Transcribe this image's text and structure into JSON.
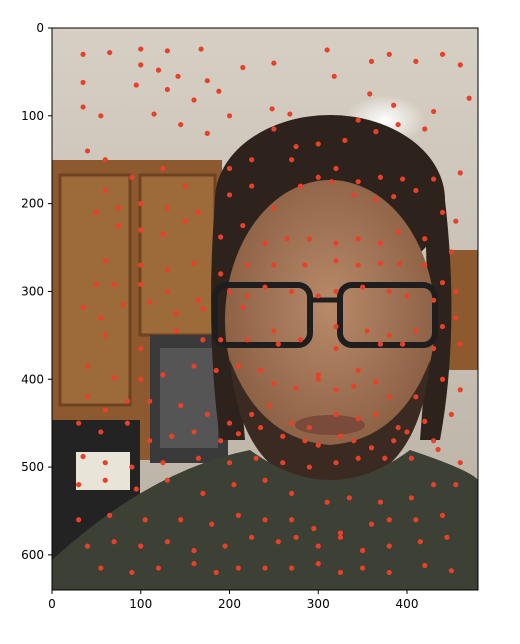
{
  "chart_data": {
    "type": "scatter",
    "title": "",
    "xlabel": "",
    "ylabel": "",
    "xlim": [
      0,
      480
    ],
    "ylim": [
      640,
      0
    ],
    "x_ticks": [
      0,
      100,
      200,
      300,
      400
    ],
    "y_ticks": [
      0,
      100,
      200,
      300,
      400,
      500,
      600
    ],
    "y_inverted": true,
    "marker_color": "#e8412a",
    "series": [
      {
        "values": [
          [
            35,
            30
          ],
          [
            65,
            28
          ],
          [
            100,
            24
          ],
          [
            130,
            26
          ],
          [
            168,
            24
          ],
          [
            100,
            42
          ],
          [
            120,
            48
          ],
          [
            142,
            55
          ],
          [
            175,
            60
          ],
          [
            215,
            45
          ],
          [
            250,
            40
          ],
          [
            310,
            25
          ],
          [
            318,
            55
          ],
          [
            360,
            38
          ],
          [
            380,
            30
          ],
          [
            410,
            38
          ],
          [
            440,
            30
          ],
          [
            460,
            42
          ],
          [
            470,
            80
          ],
          [
            35,
            62
          ],
          [
            35,
            90
          ],
          [
            55,
            100
          ],
          [
            95,
            65
          ],
          [
            130,
            70
          ],
          [
            160,
            82
          ],
          [
            188,
            72
          ],
          [
            200,
            100
          ],
          [
            115,
            98
          ],
          [
            145,
            110
          ],
          [
            175,
            120
          ],
          [
            248,
            92
          ],
          [
            268,
            98
          ],
          [
            345,
            105
          ],
          [
            358,
            75
          ],
          [
            385,
            88
          ],
          [
            420,
            115
          ],
          [
            430,
            95
          ],
          [
            250,
            115
          ],
          [
            275,
            135
          ],
          [
            300,
            132
          ],
          [
            330,
            128
          ],
          [
            365,
            118
          ],
          [
            390,
            110
          ],
          [
            40,
            140
          ],
          [
            60,
            150
          ],
          [
            90,
            170
          ],
          [
            125,
            160
          ],
          [
            150,
            180
          ],
          [
            200,
            160
          ],
          [
            225,
            150
          ],
          [
            270,
            150
          ],
          [
            300,
            170
          ],
          [
            320,
            160
          ],
          [
            345,
            175
          ],
          [
            370,
            170
          ],
          [
            395,
            172
          ],
          [
            430,
            172
          ],
          [
            460,
            165
          ],
          [
            60,
            185
          ],
          [
            75,
            205
          ],
          [
            100,
            200
          ],
          [
            130,
            205
          ],
          [
            165,
            210
          ],
          [
            200,
            190
          ],
          [
            225,
            180
          ],
          [
            250,
            205
          ],
          [
            280,
            180
          ],
          [
            315,
            175
          ],
          [
            340,
            190
          ],
          [
            365,
            195
          ],
          [
            385,
            192
          ],
          [
            410,
            185
          ],
          [
            440,
            210
          ],
          [
            455,
            220
          ],
          [
            50,
            210
          ],
          [
            75,
            225
          ],
          [
            100,
            230
          ],
          [
            125,
            235
          ],
          [
            150,
            220
          ],
          [
            190,
            238
          ],
          [
            215,
            225
          ],
          [
            240,
            245
          ],
          [
            265,
            240
          ],
          [
            290,
            240
          ],
          [
            320,
            245
          ],
          [
            345,
            240
          ],
          [
            370,
            245
          ],
          [
            390,
            232
          ],
          [
            420,
            240
          ],
          [
            450,
            255
          ],
          [
            60,
            265
          ],
          [
            100,
            270
          ],
          [
            130,
            275
          ],
          [
            160,
            268
          ],
          [
            190,
            280
          ],
          [
            220,
            270
          ],
          [
            250,
            270
          ],
          [
            285,
            270
          ],
          [
            320,
            265
          ],
          [
            345,
            270
          ],
          [
            370,
            268
          ],
          [
            392,
            268
          ],
          [
            420,
            270
          ],
          [
            440,
            290
          ],
          [
            455,
            300
          ],
          [
            50,
            292
          ],
          [
            70,
            292
          ],
          [
            100,
            292
          ],
          [
            130,
            300
          ],
          [
            165,
            310
          ],
          [
            200,
            300
          ],
          [
            220,
            305
          ],
          [
            240,
            295
          ],
          [
            270,
            300
          ],
          [
            300,
            305
          ],
          [
            320,
            300
          ],
          [
            350,
            295
          ],
          [
            380,
            300
          ],
          [
            400,
            305
          ],
          [
            430,
            310
          ],
          [
            455,
            330
          ],
          [
            35,
            318
          ],
          [
            55,
            330
          ],
          [
            80,
            315
          ],
          [
            110,
            312
          ],
          [
            140,
            325
          ],
          [
            170,
            320
          ],
          [
            215,
            318
          ],
          [
            250,
            345
          ],
          [
            280,
            355
          ],
          [
            320,
            340
          ],
          [
            355,
            345
          ],
          [
            380,
            350
          ],
          [
            410,
            345
          ],
          [
            440,
            340
          ],
          [
            60,
            350
          ],
          [
            100,
            365
          ],
          [
            140,
            345
          ],
          [
            170,
            355
          ],
          [
            190,
            355
          ],
          [
            220,
            355
          ],
          [
            255,
            360
          ],
          [
            300,
            395
          ],
          [
            320,
            365
          ],
          [
            345,
            390
          ],
          [
            370,
            360
          ],
          [
            395,
            360
          ],
          [
            430,
            365
          ],
          [
            460,
            360
          ],
          [
            40,
            385
          ],
          [
            70,
            398
          ],
          [
            100,
            400
          ],
          [
            125,
            395
          ],
          [
            160,
            385
          ],
          [
            185,
            390
          ],
          [
            210,
            385
          ],
          [
            235,
            390
          ],
          [
            250,
            405
          ],
          [
            275,
            410
          ],
          [
            300,
            400
          ],
          [
            320,
            412
          ],
          [
            340,
            408
          ],
          [
            365,
            403
          ],
          [
            380,
            420
          ],
          [
            410,
            420
          ],
          [
            440,
            400
          ],
          [
            460,
            412
          ],
          [
            40,
            420
          ],
          [
            60,
            435
          ],
          [
            85,
            425
          ],
          [
            110,
            425
          ],
          [
            145,
            430
          ],
          [
            175,
            440
          ],
          [
            200,
            450
          ],
          [
            225,
            440
          ],
          [
            245,
            430
          ],
          [
            270,
            450
          ],
          [
            290,
            455
          ],
          [
            320,
            440
          ],
          [
            345,
            445
          ],
          [
            365,
            440
          ],
          [
            390,
            455
          ],
          [
            420,
            448
          ],
          [
            450,
            440
          ],
          [
            30,
            450
          ],
          [
            55,
            460
          ],
          [
            85,
            450
          ],
          [
            110,
            470
          ],
          [
            135,
            465
          ],
          [
            160,
            460
          ],
          [
            190,
            470
          ],
          [
            210,
            462
          ],
          [
            235,
            455
          ],
          [
            260,
            465
          ],
          [
            285,
            470
          ],
          [
            300,
            475
          ],
          [
            325,
            465
          ],
          [
            340,
            470
          ],
          [
            360,
            478
          ],
          [
            385,
            470
          ],
          [
            400,
            460
          ],
          [
            430,
            470
          ],
          [
            460,
            495
          ],
          [
            35,
            488
          ],
          [
            60,
            495
          ],
          [
            90,
            500
          ],
          [
            125,
            495
          ],
          [
            165,
            490
          ],
          [
            200,
            495
          ],
          [
            230,
            490
          ],
          [
            260,
            495
          ],
          [
            290,
            500
          ],
          [
            320,
            495
          ],
          [
            345,
            490
          ],
          [
            375,
            490
          ],
          [
            405,
            490
          ],
          [
            435,
            480
          ],
          [
            30,
            520
          ],
          [
            60,
            515
          ],
          [
            95,
            525
          ],
          [
            130,
            515
          ],
          [
            170,
            530
          ],
          [
            205,
            520
          ],
          [
            240,
            515
          ],
          [
            270,
            530
          ],
          [
            310,
            540
          ],
          [
            335,
            535
          ],
          [
            370,
            540
          ],
          [
            405,
            535
          ],
          [
            430,
            520
          ],
          [
            455,
            520
          ],
          [
            30,
            560
          ],
          [
            65,
            555
          ],
          [
            105,
            560
          ],
          [
            145,
            560
          ],
          [
            180,
            565
          ],
          [
            210,
            555
          ],
          [
            240,
            560
          ],
          [
            270,
            560
          ],
          [
            295,
            570
          ],
          [
            325,
            575
          ],
          [
            360,
            565
          ],
          [
            380,
            560
          ],
          [
            410,
            560
          ],
          [
            440,
            555
          ],
          [
            40,
            590
          ],
          [
            70,
            585
          ],
          [
            100,
            590
          ],
          [
            130,
            585
          ],
          [
            160,
            595
          ],
          [
            195,
            590
          ],
          [
            225,
            580
          ],
          [
            255,
            585
          ],
          [
            275,
            580
          ],
          [
            300,
            590
          ],
          [
            325,
            580
          ],
          [
            350,
            595
          ],
          [
            380,
            590
          ],
          [
            415,
            585
          ],
          [
            445,
            580
          ],
          [
            55,
            615
          ],
          [
            90,
            620
          ],
          [
            120,
            615
          ],
          [
            160,
            610
          ],
          [
            185,
            620
          ],
          [
            210,
            615
          ],
          [
            240,
            615
          ],
          [
            270,
            615
          ],
          [
            300,
            610
          ],
          [
            325,
            620
          ],
          [
            350,
            615
          ],
          [
            380,
            620
          ],
          [
            420,
            612
          ],
          [
            450,
            618
          ]
        ]
      }
    ]
  }
}
